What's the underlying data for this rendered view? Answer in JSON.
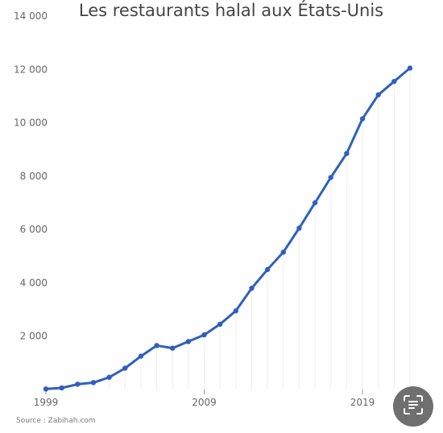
{
  "chart_data": {
    "type": "line",
    "title": "Les restaurants halal aux États-Unis",
    "xlabel": "",
    "ylabel": "",
    "x_tick_labels": [
      "1999",
      "2009",
      "2019"
    ],
    "y_tick_labels": [
      "2 000",
      "4 000",
      "6 000",
      "8 000",
      "10 000",
      "12 000",
      "14 000"
    ],
    "y_ticks": [
      2000,
      4000,
      6000,
      8000,
      10000,
      12000,
      14000
    ],
    "xlim": [
      1999,
      2022
    ],
    "ylim": [
      0,
      14000
    ],
    "grid": "vertical",
    "series": [
      {
        "color": "#2f5fbf",
        "x": [
          1999,
          2000,
          2001,
          2002,
          2003,
          2004,
          2005,
          2006,
          2007,
          2008,
          2009,
          2010,
          2011,
          2012,
          2013,
          2014,
          2015,
          2016,
          2017,
          2018,
          2019,
          2020,
          2021,
          2022
        ],
        "values": [
          20,
          60,
          200,
          260,
          460,
          800,
          1250,
          1650,
          1550,
          1800,
          2050,
          2450,
          2950,
          3800,
          4500,
          5150,
          6050,
          7000,
          7950,
          8850,
          10150,
          11050,
          11550,
          12050
        ]
      }
    ]
  },
  "source": "Source : Zabihah.com",
  "scan_button_icon": "text-scan-icon"
}
